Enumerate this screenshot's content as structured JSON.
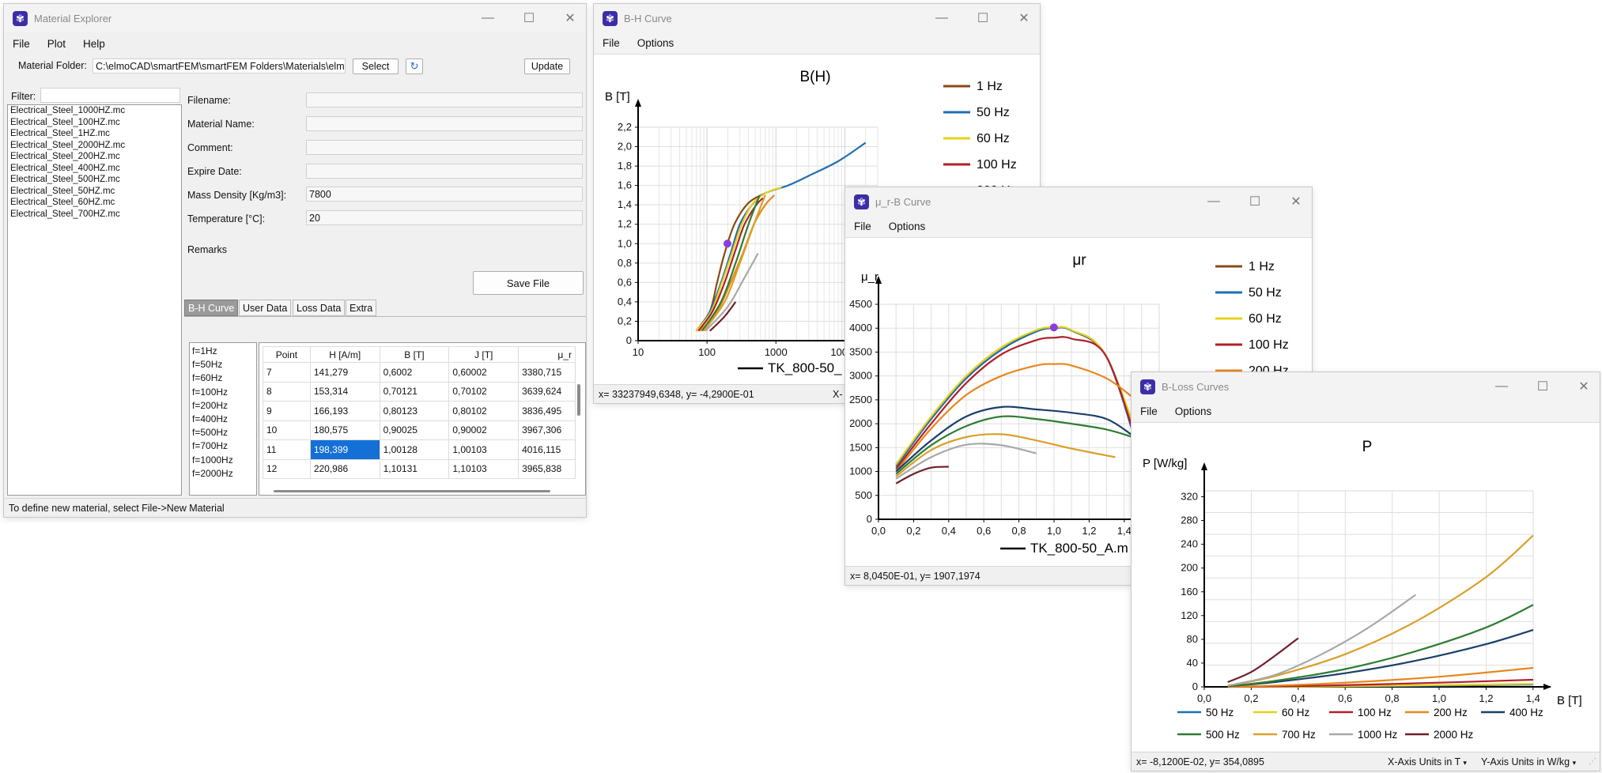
{
  "material_explorer": {
    "title": "Material Explorer",
    "menu": [
      "File",
      "Plot",
      "Help"
    ],
    "folder_label": "Material Folder:",
    "folder_value": "C:\\elmoCAD\\smartFEM\\smartFEM Folders\\Materials\\elmoC",
    "select_label": "Select",
    "update_label": "Update",
    "filter_label": "Filter:",
    "files": [
      "Electrical_Steel_1000HZ.mc",
      "Electrical_Steel_100HZ.mc",
      "Electrical_Steel_1HZ.mc",
      "Electrical_Steel_2000HZ.mc",
      "Electrical_Steel_200HZ.mc",
      "Electrical_Steel_400HZ.mc",
      "Electrical_Steel_500HZ.mc",
      "Electrical_Steel_50HZ.mc",
      "Electrical_Steel_60HZ.mc",
      "Electrical_Steel_700HZ.mc"
    ],
    "fields": [
      {
        "label": "Filename:",
        "value": ""
      },
      {
        "label": "Material Name:",
        "value": ""
      },
      {
        "label": "Comment:",
        "value": ""
      },
      {
        "label": "Expire Date:",
        "value": ""
      },
      {
        "label": "Mass Density [Kg/m3]:",
        "value": "7800"
      },
      {
        "label": "Temperature [°C]:",
        "value": "20"
      }
    ],
    "remarks_label": "Remarks",
    "save_label": "Save File",
    "tabs": [
      "B-H Curve",
      "User Data",
      "Loss Data",
      "Extra"
    ],
    "freqs": [
      "f=1Hz",
      "f=50Hz",
      "f=60Hz",
      "f=100Hz",
      "f=200Hz",
      "f=400Hz",
      "f=500Hz",
      "f=700Hz",
      "f=1000Hz",
      "f=2000Hz"
    ],
    "table": {
      "headers": [
        "Point",
        "H [A/m]",
        "B [T]",
        "J [T]",
        "μ_r"
      ],
      "rows": [
        [
          "7",
          "141,279",
          "0,6002",
          "0,60002",
          "3380,715"
        ],
        [
          "8",
          "153,314",
          "0,70121",
          "0,70102",
          "3639,624"
        ],
        [
          "9",
          "166,193",
          "0,80123",
          "0,80102",
          "3836,495"
        ],
        [
          "10",
          "180,575",
          "0,90025",
          "0,90002",
          "3967,306"
        ],
        [
          "11",
          "198,399",
          "1,00128",
          "1,00103",
          "4016,115"
        ],
        [
          "12",
          "220,986",
          "1,10131",
          "1,10103",
          "3965,838"
        ]
      ]
    },
    "status": "To define new material, select File->New Material"
  },
  "bh_window": {
    "title": "B-H Curve",
    "menu": [
      "File",
      "Options"
    ],
    "status": "x= 33237949,6348, y= -4,2900E-01",
    "status_right": "X-"
  },
  "mur_window": {
    "title": "μ_r-B Curve",
    "menu": [
      "File",
      "Options"
    ],
    "status": "x= 8,0450E-01, y= 1907,1974"
  },
  "loss_window": {
    "title": "B-Loss Curves",
    "menu": [
      "File",
      "Options"
    ],
    "status": "x= -8,1200E-02, y= 354,0895",
    "x_units": "X-Axis Units in T",
    "y_units": "Y-Axis Units in W/kg"
  },
  "colors": {
    "1 Hz": "#8b4a14",
    "50 Hz": "#1f6fb2",
    "60 Hz": "#e8d219",
    "100 Hz": "#b0202a",
    "200 Hz": "#e8861e",
    "400 Hz": "#1a3f6b",
    "500 Hz": "#2e7d32",
    "700 Hz": "#d9a02a",
    "1000 Hz": "#a8a8a8",
    "2000 Hz": "#6e1f2b",
    "accent": "#1470d6",
    "marker": "#8b3fd9"
  },
  "chart_data": [
    {
      "type": "line",
      "title": "B(H)",
      "xlabel": "",
      "ylabel": "B [T]",
      "xscale": "log",
      "xlim": [
        10,
        30000
      ],
      "ylim": [
        0,
        2.2
      ],
      "xticks": [
        "10",
        "100",
        "1000",
        "10000"
      ],
      "yticks": [
        "0",
        "0,2",
        "0,4",
        "0,6",
        "0,8",
        "1,0",
        "1,2",
        "1,4",
        "1,6",
        "1,8",
        "2,0",
        "2,2"
      ],
      "legend": [
        "1 Hz",
        "50 Hz",
        "60 Hz",
        "100 Hz",
        "200 Hz"
      ],
      "extra_label": "TK_800-50_",
      "marker": {
        "x": 198,
        "y": 1.0
      },
      "series": [
        {
          "name": "1 Hz",
          "x": [
            70,
            110,
            140,
            180,
            250,
            400,
            700
          ],
          "y": [
            0.1,
            0.3,
            0.6,
            0.9,
            1.2,
            1.42,
            1.52
          ]
        },
        {
          "name": "50 Hz",
          "x": [
            70,
            110,
            160,
            220,
            300,
            450,
            700,
            1500,
            3000,
            8000,
            20000
          ],
          "y": [
            0.1,
            0.3,
            0.6,
            0.9,
            1.2,
            1.4,
            1.52,
            1.6,
            1.7,
            1.85,
            2.04
          ]
        },
        {
          "name": "60 Hz",
          "x": [
            70,
            115,
            165,
            230,
            320,
            470,
            750,
            1200
          ],
          "y": [
            0.1,
            0.3,
            0.6,
            0.9,
            1.2,
            1.42,
            1.53,
            1.58
          ]
        },
        {
          "name": "100 Hz",
          "x": [
            75,
            120,
            180,
            250,
            350,
            520,
            650
          ],
          "y": [
            0.1,
            0.3,
            0.6,
            0.9,
            1.2,
            1.4,
            1.47
          ]
        },
        {
          "name": "200 Hz",
          "x": [
            80,
            140,
            220,
            330,
            480,
            700,
            950
          ],
          "y": [
            0.1,
            0.3,
            0.6,
            0.9,
            1.2,
            1.4,
            1.5
          ]
        },
        {
          "name": "500 Hz",
          "x": [
            85,
            160,
            260,
            400,
            580
          ],
          "y": [
            0.1,
            0.4,
            0.8,
            1.2,
            1.5
          ]
        },
        {
          "name": "700 Hz",
          "x": [
            90,
            180,
            300,
            480,
            700
          ],
          "y": [
            0.1,
            0.4,
            0.8,
            1.2,
            1.5
          ]
        },
        {
          "name": "1000 Hz",
          "x": [
            95,
            200,
            350,
            550
          ],
          "y": [
            0.1,
            0.35,
            0.65,
            0.9
          ]
        },
        {
          "name": "2000 Hz",
          "x": [
            110,
            180,
            260
          ],
          "y": [
            0.1,
            0.25,
            0.4
          ]
        }
      ]
    },
    {
      "type": "line",
      "title": "μr",
      "xlabel": "",
      "ylabel": "μ_r",
      "xlim": [
        0,
        1.6
      ],
      "ylim": [
        0,
        4500
      ],
      "xticks": [
        "0,0",
        "0,2",
        "0,4",
        "0,6",
        "0,8",
        "1,0",
        "1,2",
        "1,4",
        "1"
      ],
      "yticks": [
        "0",
        "500",
        "1000",
        "1500",
        "2000",
        "2500",
        "3000",
        "3500",
        "4000",
        "4500"
      ],
      "legend": [
        "1 Hz",
        "50 Hz",
        "60 Hz",
        "100 Hz",
        "200 Hz"
      ],
      "extra_label": "TK_800-50_A.m",
      "marker": {
        "x": 1.0,
        "y": 4016
      },
      "series": [
        {
          "name": "1 Hz",
          "x": [
            0.1,
            0.3,
            0.5,
            0.7,
            0.9,
            1.0,
            1.1,
            1.3,
            1.5
          ],
          "y": [
            1150,
            2100,
            2950,
            3550,
            3950,
            4010,
            3950,
            3400,
            1300
          ]
        },
        {
          "name": "50 Hz",
          "x": [
            0.1,
            0.3,
            0.5,
            0.7,
            0.9,
            1.0,
            1.1,
            1.3,
            1.5
          ],
          "y": [
            1100,
            2100,
            2950,
            3550,
            3930,
            4000,
            3950,
            3400,
            1200
          ]
        },
        {
          "name": "60 Hz",
          "x": [
            0.1,
            0.3,
            0.5,
            0.7,
            0.9,
            1.0,
            1.1,
            1.3,
            1.55
          ],
          "y": [
            1150,
            2150,
            3000,
            3600,
            3960,
            4016,
            3960,
            3400,
            950
          ]
        },
        {
          "name": "100 Hz",
          "x": [
            0.1,
            0.3,
            0.5,
            0.7,
            0.9,
            1.0,
            1.1,
            1.3,
            1.5
          ],
          "y": [
            1050,
            2000,
            2850,
            3450,
            3750,
            3800,
            3780,
            3400,
            1250
          ]
        },
        {
          "name": "200 Hz",
          "x": [
            0.1,
            0.3,
            0.5,
            0.7,
            0.9,
            1.0,
            1.1,
            1.3,
            1.45
          ],
          "y": [
            1000,
            1900,
            2600,
            3000,
            3220,
            3250,
            3220,
            2950,
            2550
          ]
        },
        {
          "name": "400 Hz",
          "x": [
            0.1,
            0.3,
            0.5,
            0.7,
            0.9,
            1.1,
            1.3,
            1.45
          ],
          "y": [
            1000,
            1650,
            2150,
            2350,
            2300,
            2230,
            2100,
            1750
          ]
        },
        {
          "name": "500 Hz",
          "x": [
            0.1,
            0.3,
            0.5,
            0.7,
            0.9,
            1.1,
            1.3,
            1.45
          ],
          "y": [
            950,
            1550,
            1950,
            2150,
            2100,
            2000,
            1880,
            1720
          ]
        },
        {
          "name": "700 Hz",
          "x": [
            0.1,
            0.3,
            0.5,
            0.7,
            0.9,
            1.1,
            1.35
          ],
          "y": [
            900,
            1450,
            1720,
            1780,
            1650,
            1480,
            1300
          ]
        },
        {
          "name": "1000 Hz",
          "x": [
            0.1,
            0.3,
            0.5,
            0.7,
            0.9
          ],
          "y": [
            850,
            1300,
            1560,
            1550,
            1380
          ]
        },
        {
          "name": "2000 Hz",
          "x": [
            0.1,
            0.2,
            0.3,
            0.4
          ],
          "y": [
            750,
            950,
            1080,
            1100
          ]
        }
      ]
    },
    {
      "type": "line",
      "title": "P",
      "xlabel": "B [T]",
      "ylabel": "P [W/kg]",
      "xlim": [
        0,
        1.4
      ],
      "ylim": [
        0,
        330
      ],
      "xticks": [
        "0,0",
        "0,2",
        "0,4",
        "0,6",
        "0,8",
        "1,0",
        "1,2",
        "1,4"
      ],
      "yticks": [
        "0",
        "40",
        "80",
        "120",
        "160",
        "200",
        "240",
        "280",
        "320"
      ],
      "legend": [
        "50 Hz",
        "60 Hz",
        "100 Hz",
        "200 Hz",
        "400 Hz",
        "500 Hz",
        "700 Hz",
        "1000 Hz",
        "2000 Hz"
      ],
      "series": [
        {
          "name": "50 Hz",
          "x": [
            0.1,
            0.5,
            1.0,
            1.4
          ],
          "y": [
            0,
            0.5,
            2,
            4
          ]
        },
        {
          "name": "60 Hz",
          "x": [
            0.1,
            0.5,
            1.0,
            1.4
          ],
          "y": [
            0,
            0.7,
            3,
            5
          ]
        },
        {
          "name": "100 Hz",
          "x": [
            0.1,
            0.5,
            1.0,
            1.4
          ],
          "y": [
            0,
            2,
            7,
            12
          ]
        },
        {
          "name": "200 Hz",
          "x": [
            0.1,
            0.5,
            1.0,
            1.4
          ],
          "y": [
            0,
            5,
            17,
            32
          ]
        },
        {
          "name": "400 Hz",
          "x": [
            0.1,
            0.3,
            0.6,
            0.9,
            1.2,
            1.4
          ],
          "y": [
            1,
            8,
            23,
            44,
            72,
            96
          ]
        },
        {
          "name": "500 Hz",
          "x": [
            0.1,
            0.3,
            0.6,
            0.9,
            1.2,
            1.4
          ],
          "y": [
            1,
            10,
            30,
            60,
            100,
            138
          ]
        },
        {
          "name": "700 Hz",
          "x": [
            0.1,
            0.3,
            0.6,
            0.9,
            1.2,
            1.4
          ],
          "y": [
            2,
            18,
            55,
            110,
            185,
            255
          ]
        },
        {
          "name": "1000 Hz",
          "x": [
            0.1,
            0.3,
            0.5,
            0.7,
            0.9
          ],
          "y": [
            2,
            20,
            55,
            100,
            155
          ]
        },
        {
          "name": "2000 Hz",
          "x": [
            0.1,
            0.2,
            0.3,
            0.4
          ],
          "y": [
            8,
            25,
            52,
            82
          ]
        }
      ]
    }
  ]
}
